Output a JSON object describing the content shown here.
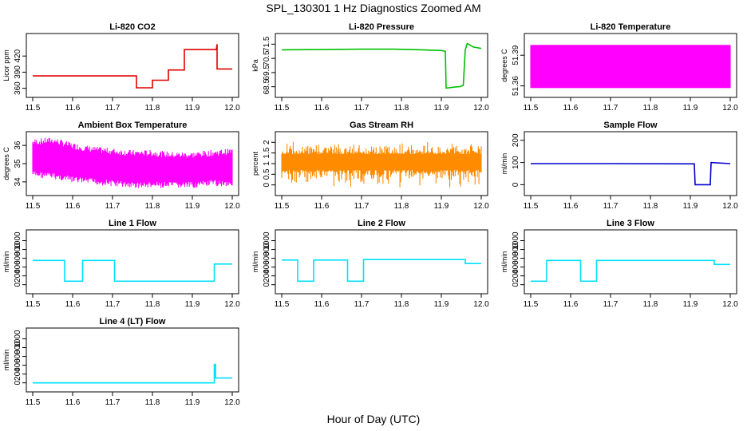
{
  "title": "SPL_130301 1 Hz Diagnostics Zoomed AM",
  "xlabel": "Hour of Day (UTC)",
  "chart_data": [
    {
      "id": "co2",
      "type": "line",
      "title": "Li-820 CO2",
      "ylabel": "Licor ppm",
      "color": "#e00000",
      "xlim": [
        11.5,
        12.0
      ],
      "xticks": [
        "11.5",
        "11.6",
        "11.7",
        "11.8",
        "11.9",
        "12.0"
      ],
      "ylim": [
        355,
        450
      ],
      "yticks": [
        360,
        390,
        420
      ],
      "series": [
        {
          "x": [
            11.5,
            11.76,
            11.76,
            11.8,
            11.8,
            11.84,
            11.84,
            11.88,
            11.88,
            11.96,
            11.962,
            11.962,
            12.0
          ],
          "y": [
            383,
            383,
            361,
            361,
            375,
            375,
            394,
            394,
            432,
            432,
            442,
            396,
            396
          ]
        }
      ]
    },
    {
      "id": "pressure",
      "type": "line",
      "title": "Li-820 Pressure",
      "ylabel": "kPa",
      "color": "#00c000",
      "xlim": [
        11.5,
        12.0
      ],
      "xticks": [
        "11.5",
        "11.6",
        "11.7",
        "11.8",
        "11.9",
        "12.0"
      ],
      "ylim": [
        68.2,
        71.8
      ],
      "yticks": [
        68.5,
        69.5,
        70.5,
        71.5
      ],
      "series": [
        {
          "x": [
            11.5,
            11.6,
            11.7,
            11.78,
            11.85,
            11.9,
            11.91,
            11.912,
            11.94,
            11.945,
            11.955,
            11.96,
            11.965,
            11.98,
            12.0
          ],
          "y": [
            71.1,
            71.12,
            71.15,
            71.15,
            71.1,
            71.05,
            71.0,
            68.4,
            68.5,
            68.5,
            68.6,
            71.1,
            71.55,
            71.3,
            71.2
          ]
        }
      ]
    },
    {
      "id": "temperature",
      "type": "area",
      "title": "Li-820 Temperature",
      "ylabel": "degrees C",
      "color": "#ff00ff",
      "xlim": [
        11.5,
        12.0
      ],
      "xticks": [
        "11.5",
        "11.6",
        "11.7",
        "11.8",
        "11.9",
        "12.0"
      ],
      "ylim": [
        51.355,
        51.405
      ],
      "yticks": [
        51.36,
        51.39
      ],
      "band": [
        51.358,
        51.4
      ]
    },
    {
      "id": "ambient",
      "type": "area",
      "title": "Ambient Box Temperature",
      "ylabel": "degrees C",
      "color": "#ff00ff",
      "xlim": [
        11.5,
        12.0
      ],
      "xticks": [
        "11.5",
        "11.6",
        "11.7",
        "11.8",
        "11.9",
        "12.0"
      ],
      "ylim": [
        33.6,
        36.4
      ],
      "yticks": [
        34.0,
        35.0,
        36.0
      ],
      "band_lower": [
        34.6,
        34.5,
        34.3,
        34.2,
        34.1,
        34.0,
        34.0,
        34.0,
        34.0,
        34.1,
        34.1
      ],
      "band_upper": [
        36.0,
        36.1,
        35.8,
        35.6,
        35.5,
        35.4,
        35.4,
        35.3,
        35.3,
        35.4,
        35.5
      ]
    },
    {
      "id": "rh",
      "type": "area",
      "title": "Gas Stream RH",
      "ylabel": "percent",
      "color": "#ff8c00",
      "xlim": [
        11.5,
        12.0
      ],
      "xticks": [
        "11.5",
        "11.6",
        "11.7",
        "11.8",
        "11.9",
        "12.0"
      ],
      "ylim": [
        -0.2,
        2.2
      ],
      "yticks": [
        0.0,
        0.5,
        1.0,
        1.5,
        2.0
      ],
      "band": [
        0.7,
        1.45
      ]
    },
    {
      "id": "sampleflow",
      "type": "line",
      "title": "Sample Flow",
      "ylabel": "ml/min",
      "color": "#0000cc",
      "xlim": [
        11.5,
        12.0
      ],
      "xticks": [
        "11.5",
        "11.6",
        "11.7",
        "11.8",
        "11.9",
        "12.0"
      ],
      "ylim": [
        -20,
        210
      ],
      "yticks": [
        0,
        100,
        200
      ],
      "series": [
        {
          "x": [
            11.5,
            11.7,
            11.91,
            11.912,
            11.95,
            11.952,
            12.0
          ],
          "y": [
            95,
            95,
            94,
            0,
            0,
            100,
            95
          ]
        }
      ]
    },
    {
      "id": "line1",
      "type": "line",
      "title": "Line 1 Flow",
      "ylabel": "ml/min",
      "color": "#00e0ff",
      "xlim": [
        11.5,
        12.0
      ],
      "xticks": [
        "11.5",
        "11.6",
        "11.7",
        "11.8",
        "11.9",
        "12.0"
      ],
      "ylim": [
        -60,
        1100
      ],
      "yticks": [
        0,
        200,
        400,
        600,
        800,
        1000
      ],
      "series": [
        {
          "x": [
            11.5,
            11.58,
            11.58,
            11.625,
            11.625,
            11.705,
            11.705,
            11.955,
            11.955,
            12.0
          ],
          "y": [
            550,
            550,
            80,
            80,
            550,
            550,
            80,
            80,
            470,
            470
          ]
        }
      ]
    },
    {
      "id": "line2",
      "type": "line",
      "title": "Line 2 Flow",
      "ylabel": "ml/min",
      "color": "#00e0ff",
      "xlim": [
        11.5,
        12.0
      ],
      "xticks": [
        "11.5",
        "11.6",
        "11.7",
        "11.8",
        "11.9",
        "12.0"
      ],
      "ylim": [
        -60,
        1100
      ],
      "yticks": [
        0,
        200,
        400,
        600,
        800,
        1000
      ],
      "series": [
        {
          "x": [
            11.5,
            11.54,
            11.54,
            11.58,
            11.58,
            11.665,
            11.665,
            11.705,
            11.705,
            11.96,
            11.96,
            12.0
          ],
          "y": [
            560,
            560,
            80,
            80,
            560,
            560,
            80,
            80,
            570,
            570,
            480,
            480
          ]
        }
      ]
    },
    {
      "id": "line3",
      "type": "line",
      "title": "Line 3 Flow",
      "ylabel": "ml/min",
      "color": "#00e0ff",
      "xlim": [
        11.5,
        12.0
      ],
      "xticks": [
        "11.5",
        "11.6",
        "11.7",
        "11.8",
        "11.9",
        "12.0"
      ],
      "ylim": [
        -60,
        1100
      ],
      "yticks": [
        0,
        200,
        400,
        600,
        800,
        1000
      ],
      "series": [
        {
          "x": [
            11.5,
            11.54,
            11.54,
            11.625,
            11.625,
            11.665,
            11.665,
            11.96,
            11.96,
            12.0
          ],
          "y": [
            80,
            80,
            550,
            550,
            80,
            80,
            550,
            550,
            460,
            460
          ]
        }
      ]
    },
    {
      "id": "line4",
      "type": "line",
      "title": "Line 4 (LT) Flow",
      "ylabel": "ml/min",
      "color": "#00e0ff",
      "xlim": [
        11.5,
        12.0
      ],
      "xticks": [
        "11.5",
        "11.6",
        "11.7",
        "11.8",
        "11.9",
        "12.0"
      ],
      "ylim": [
        -60,
        1100
      ],
      "yticks": [
        0,
        200,
        400,
        600,
        800,
        1000
      ],
      "series": [
        {
          "x": [
            11.5,
            11.955,
            11.955,
            11.958,
            11.958,
            12.0
          ],
          "y": [
            0,
            0,
            420,
            420,
            110,
            110
          ]
        }
      ]
    }
  ]
}
